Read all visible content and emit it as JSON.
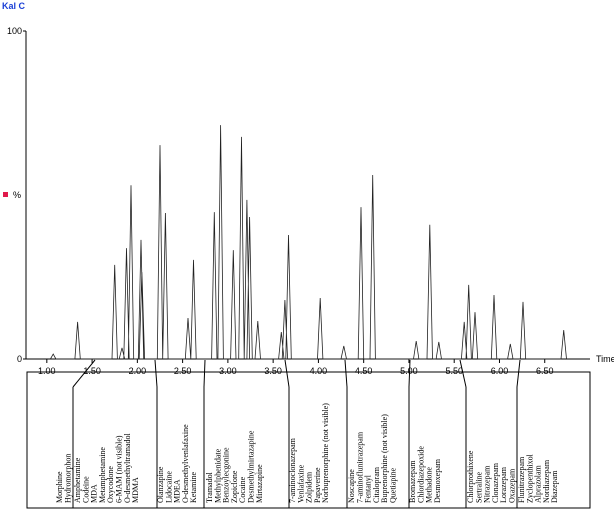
{
  "chart_data": {
    "type": "line",
    "title": "Kal C",
    "ylabel": "%",
    "xlabel": "Time",
    "xlim": [
      0.77,
      7.0
    ],
    "ylim": [
      0,
      100
    ],
    "yticks": [
      0,
      100
    ],
    "xticks": [
      {
        "value": 1.0,
        "label": "1.00"
      },
      {
        "value": 1.5,
        "label": "1.50"
      },
      {
        "value": 2.0,
        "label": "2.00"
      },
      {
        "value": 2.5,
        "label": "2.50"
      },
      {
        "value": 3.0,
        "label": "3.00"
      },
      {
        "value": 3.5,
        "label": "3.50"
      },
      {
        "value": 4.0,
        "label": "4.00"
      },
      {
        "value": 4.5,
        "label": "4.50"
      },
      {
        "value": 5.0,
        "label": "5.00"
      },
      {
        "value": 5.5,
        "label": "5.50"
      },
      {
        "value": 6.0,
        "label": "6.00"
      },
      {
        "value": 6.5,
        "label": "6.50"
      }
    ],
    "color": "#222",
    "x": [
      1.04,
      1.07,
      1.1,
      1.31,
      1.34,
      1.37,
      1.72,
      1.75,
      1.78,
      1.8,
      1.83,
      1.86,
      1.85,
      1.88,
      1.91,
      1.9,
      1.93,
      1.96,
      2.01,
      2.04,
      2.07,
      2.02,
      2.05,
      2.08,
      2.22,
      2.25,
      2.28,
      2.28,
      2.31,
      2.34,
      2.53,
      2.56,
      2.59,
      2.59,
      2.62,
      2.65,
      2.82,
      2.85,
      2.88,
      2.89,
      2.92,
      2.95,
      3.03,
      3.06,
      3.09,
      3.12,
      3.15,
      3.18,
      3.18,
      3.21,
      3.24,
      3.21,
      3.24,
      3.27,
      3.3,
      3.33,
      3.36,
      3.56,
      3.59,
      3.62,
      3.6,
      3.63,
      3.66,
      3.64,
      3.67,
      3.7,
      3.99,
      4.02,
      4.05,
      4.25,
      4.28,
      4.31,
      4.44,
      4.47,
      4.5,
      4.57,
      4.6,
      4.63,
      5.05,
      5.08,
      5.11,
      5.2,
      5.23,
      5.26,
      5.3,
      5.33,
      5.36,
      5.58,
      5.61,
      5.64,
      5.63,
      5.66,
      5.69,
      5.7,
      5.73,
      5.76,
      5.91,
      5.94,
      5.97,
      6.09,
      6.12,
      6.15,
      6.23,
      6.26,
      6.29,
      6.68,
      6.71,
      6.74
    ],
    "values": [
      0,
      1.5,
      0,
      0,
      11.3,
      0,
      0,
      28.7,
      0,
      0,
      3.4,
      0,
      0,
      33.8,
      0,
      0,
      53,
      0,
      0,
      36.3,
      0,
      0,
      26.5,
      0,
      0,
      65.2,
      0,
      0,
      44.5,
      0,
      0,
      12.5,
      0,
      0,
      30.2,
      0,
      0,
      44.8,
      0,
      0,
      71.3,
      0,
      0,
      33.2,
      0,
      0,
      67.7,
      0,
      0,
      48.5,
      0,
      0,
      43.3,
      0,
      0,
      11.6,
      0,
      0,
      8.2,
      0,
      0,
      18,
      0,
      0,
      37.8,
      0,
      0,
      18.6,
      0,
      0,
      4,
      0,
      0,
      46.3,
      0,
      0,
      56.1,
      0,
      0,
      5.5,
      0,
      0,
      40.9,
      0,
      0,
      5.2,
      0,
      0,
      11.3,
      0,
      0,
      22.6,
      0,
      0,
      14.3,
      0,
      0,
      19.5,
      0,
      0,
      4.6,
      0,
      0,
      17.4,
      0,
      0,
      8.8,
      0
    ]
  },
  "compound_groups": [
    [
      "Morphine",
      "Hydromorphon"
    ],
    [
      "Amphetamine",
      "Codeine",
      "MDA",
      "Metamphetamine",
      "Oxycodone",
      "6-MAM (not visible)",
      "O-desmethyltramadol",
      "MDMA"
    ],
    [
      "Olanzapine",
      "Lidocaine",
      "MDEA",
      "O-desmethylvenlafaxine",
      "Ketamine"
    ],
    [
      "Tramadol",
      "Methylphenidate",
      "Benzoylecgonine",
      "Zopiclone",
      "Cocaine",
      "Desmethylmirtazapine",
      "Mirtazapine"
    ],
    [
      "7-aminoclonazepam",
      "Venlafaxine",
      "Zolpidem",
      "Papaverine",
      "Norbuprenorphine (not visible)"
    ],
    [
      "Noscapine",
      "7-aminoflunitrazepam",
      "Fentanyl",
      "Citalopram",
      "Buprenorphine (not visible)",
      "Quetiapine"
    ],
    [
      "Bromazepam",
      "Chlordiazepoxide",
      "Methadone",
      "Desmoxepam"
    ],
    [
      "Chlorprothixene",
      "Sertraline",
      "Nitrazepam",
      "Clonazepam",
      "Lorazepam",
      "Oxazepam"
    ],
    [
      "Flunitrazepam",
      "Zyclopenthixol",
      "Alprazolam",
      "Nordiazepam",
      "Diazepam"
    ]
  ]
}
